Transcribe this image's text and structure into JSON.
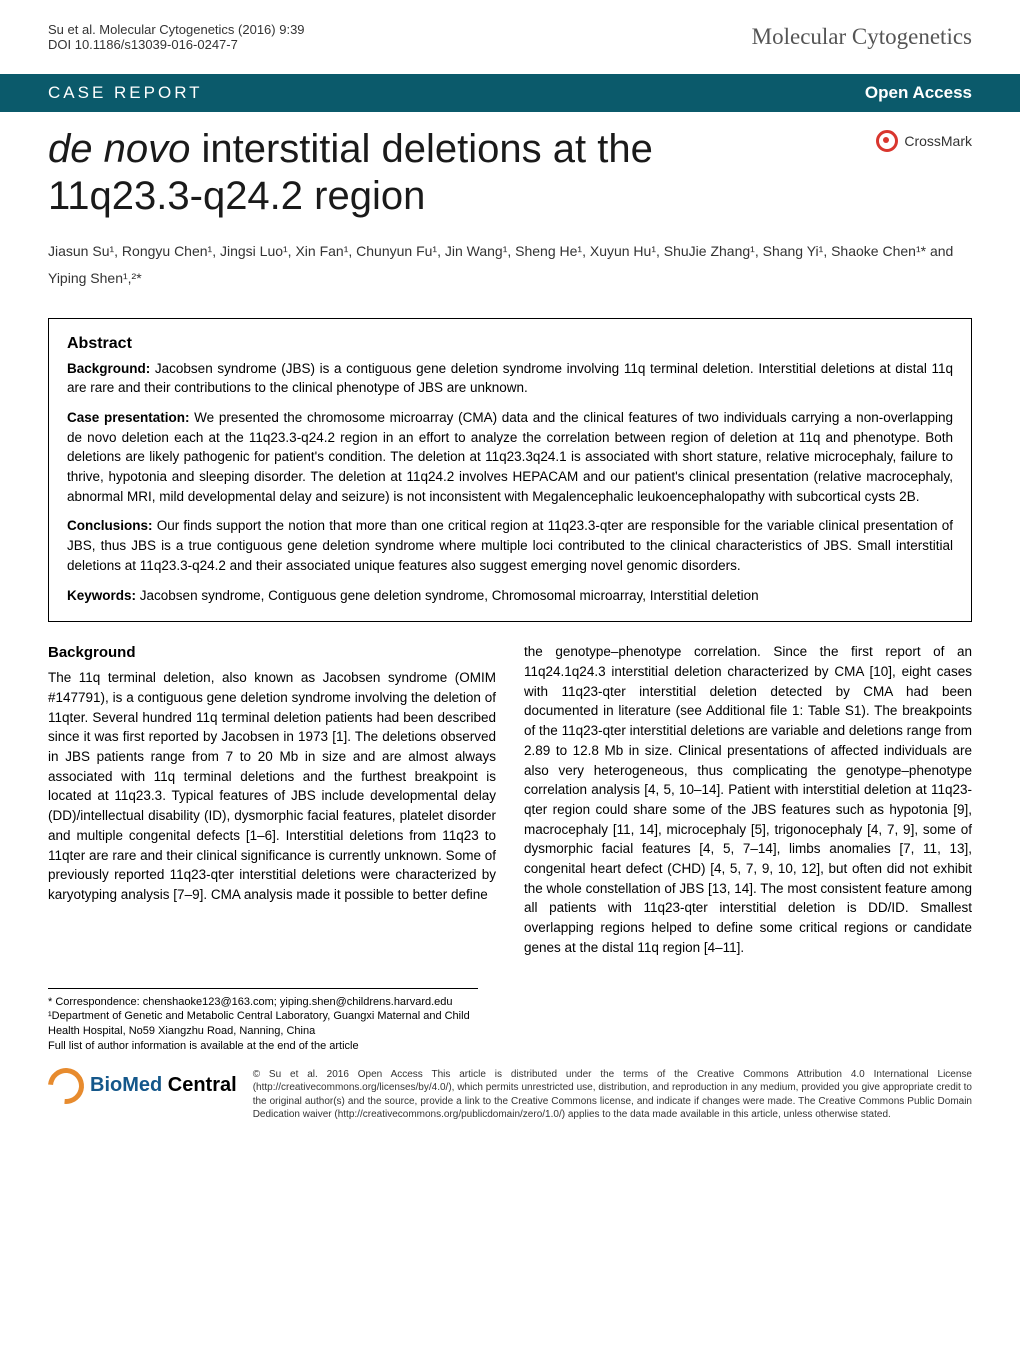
{
  "header": {
    "citation": "Su et al. Molecular Cytogenetics (2016) 9:39",
    "doi": "DOI 10.1186/s13039-016-0247-7",
    "journal": "Molecular Cytogenetics"
  },
  "banner": {
    "left": "CASE REPORT",
    "right": "Open Access"
  },
  "title": {
    "prefix_italic": "de novo",
    "rest": " interstitial deletions at the 11q23.3-q24.2 region"
  },
  "crossmark": "CrossMark",
  "authors": "Jiasun Su¹, Rongyu Chen¹, Jingsi Luo¹, Xin Fan¹, Chunyun Fu¹, Jin Wang¹, Sheng He¹, Xuyun Hu¹, ShuJie Zhang¹, Shang Yi¹, Shaoke Chen¹* and Yiping Shen¹,²*",
  "abstract": {
    "heading": "Abstract",
    "background_label": "Background:",
    "background_text": " Jacobsen syndrome (JBS) is a contiguous gene deletion syndrome involving 11q terminal deletion. Interstitial deletions at distal 11q are rare and their contributions to the clinical phenotype of JBS are unknown.",
    "case_label": "Case presentation:",
    "case_text": " We presented the chromosome microarray (CMA) data and the clinical features of two individuals carrying a non-overlapping de novo deletion each at the 11q23.3-q24.2 region in an effort to analyze the correlation between region of deletion at 11q and phenotype. Both deletions are likely pathogenic for patient's condition. The deletion at 11q23.3q24.1 is associated with short stature, relative microcephaly, failure to thrive, hypotonia and sleeping disorder. The deletion at 11q24.2 involves HEPACAM and our patient's clinical presentation (relative macrocephaly, abnormal MRI, mild developmental delay and seizure) is not inconsistent with Megalencephalic leukoencephalopathy with subcortical cysts 2B.",
    "conclusions_label": "Conclusions:",
    "conclusions_text": " Our finds support the notion that more than one critical region at 11q23.3-qter are responsible for the variable clinical presentation of JBS, thus JBS is a true contiguous gene deletion syndrome where multiple loci contributed to the clinical characteristics of JBS. Small interstitial deletions at 11q23.3-q24.2 and their associated unique features also suggest emerging novel genomic disorders.",
    "keywords_label": "Keywords:",
    "keywords_text": " Jacobsen syndrome, Contiguous gene deletion syndrome, Chromosomal microarray, Interstitial deletion"
  },
  "body": {
    "background_heading": "Background",
    "col1_text": "The 11q terminal deletion, also known as Jacobsen syndrome (OMIM #147791), is a contiguous gene deletion syndrome involving the deletion of 11qter. Several hundred 11q terminal deletion patients had been described since it was first reported by Jacobsen in 1973 [1]. The deletions observed in JBS patients range from 7 to 20 Mb in size and are almost always associated with 11q terminal deletions and the furthest breakpoint is located at 11q23.3. Typical features of JBS include developmental delay (DD)/intellectual disability (ID), dysmorphic facial features, platelet disorder and multiple congenital defects [1–6]. Interstitial deletions from 11q23 to 11qter are rare and their clinical significance is currently unknown. Some of previously reported 11q23-qter interstitial deletions were characterized by karyotyping analysis [7–9]. CMA analysis made it possible to better define",
    "col2_text": "the genotype–phenotype correlation. Since the first report of an 11q24.1q24.3 interstitial deletion characterized by CMA [10], eight cases with 11q23-qter interstitial deletion detected by CMA had been documented in literature (see Additional file 1: Table S1). The breakpoints of the 11q23-qter interstitial deletions are variable and deletions range from 2.89 to 12.8 Mb in size. Clinical presentations of affected individuals are also very heterogeneous, thus complicating the genotype–phenotype correlation analysis [4, 5, 10–14]. Patient with interstitial deletion at 11q23-qter region could share some of the JBS features such as hypotonia [9], macrocephaly [11, 14], microcephaly [5], trigonocephaly [4, 7, 9], some of dysmorphic facial features [4, 5, 7–14], limbs anomalies [7, 11, 13], congenital heart defect (CHD) [4, 5, 7, 9, 10, 12], but often did not exhibit the whole constellation of JBS [13, 14]. The most consistent feature among all patients with 11q23-qter interstitial deletion is DD/ID. Smallest overlapping regions helped to define some critical regions or candidate genes at the distal 11q region [4–11]."
  },
  "correspondence": {
    "line1": "* Correspondence: chenshaoke123@163.com; yiping.shen@childrens.harvard.edu",
    "line2": "¹Department of Genetic and Metabolic Central Laboratory, Guangxi Maternal and Child Health Hospital, No59 Xiangzhu Road, Nanning, China",
    "line3": "Full list of author information is available at the end of the article"
  },
  "footer": {
    "logo_bio": "BioMed",
    "logo_central": " Central",
    "license": "© Su et al. 2016 Open Access This article is distributed under the terms of the Creative Commons Attribution 4.0 International License (http://creativecommons.org/licenses/by/4.0/), which permits unrestricted use, distribution, and reproduction in any medium, provided you give appropriate credit to the original author(s) and the source, provide a link to the Creative Commons license, and indicate if changes were made. The Creative Commons Public Domain Dedication waiver (http://creativecommons.org/publicdomain/zero/1.0/) applies to the data made available in this article, unless otherwise stated."
  },
  "colors": {
    "banner_bg": "#0b5a6b",
    "banner_text": "#ffffff",
    "crossmark_ring": "#d9362e",
    "bmc_ring": "#e78b2e",
    "bmc_bio": "#14578a"
  }
}
